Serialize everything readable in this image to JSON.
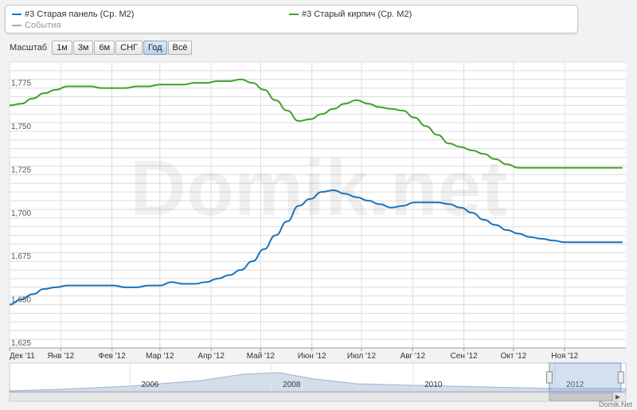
{
  "legend": {
    "items": [
      {
        "label": "#3 Старая панель (Ср. M2)",
        "color": "#1a73bb"
      },
      {
        "label": "#3 Старый кирпич (Ср. M2)",
        "color": "#3fa12a"
      },
      {
        "label": "События",
        "color": "#aaaaaa"
      }
    ]
  },
  "toolbar": {
    "label": "Масштаб",
    "buttons": [
      "1м",
      "3м",
      "6м",
      "СНГ",
      "Год",
      "Всё"
    ],
    "active": "Год"
  },
  "watermark": "Domik.net",
  "credit": "Domik.Net",
  "chart_data": {
    "type": "line",
    "title": "",
    "xlabel": "",
    "ylabel": "",
    "x": [
      "2011-12-01",
      "2011-12-08",
      "2011-12-15",
      "2011-12-22",
      "2011-12-29",
      "2012-01-05",
      "2012-01-12",
      "2012-01-19",
      "2012-01-26",
      "2012-02-02",
      "2012-02-09",
      "2012-02-16",
      "2012-02-23",
      "2012-03-01",
      "2012-03-08",
      "2012-03-15",
      "2012-03-22",
      "2012-03-29",
      "2012-04-05",
      "2012-04-12",
      "2012-04-19",
      "2012-04-26",
      "2012-05-03",
      "2012-05-10",
      "2012-05-17",
      "2012-05-24",
      "2012-05-31",
      "2012-06-07",
      "2012-06-14",
      "2012-06-21",
      "2012-06-28",
      "2012-07-05",
      "2012-07-12",
      "2012-07-19",
      "2012-07-26",
      "2012-08-02",
      "2012-08-09",
      "2012-08-16",
      "2012-08-23",
      "2012-08-30",
      "2012-09-06",
      "2012-09-13",
      "2012-09-20",
      "2012-09-27",
      "2012-10-04",
      "2012-10-11",
      "2012-10-18",
      "2012-10-25",
      "2012-11-01",
      "2012-11-08",
      "2012-11-15",
      "2012-11-22",
      "2012-11-29",
      "2012-12-06"
    ],
    "series": [
      {
        "name": "#3 Старая панель (Ср. M2)",
        "color": "#1a73bb",
        "values": [
          1650,
          1653,
          1656,
          1659,
          1660,
          1661,
          1661,
          1661,
          1661,
          1661,
          1660,
          1660,
          1661,
          1661,
          1663,
          1662,
          1662,
          1663,
          1665,
          1667,
          1670,
          1675,
          1682,
          1690,
          1698,
          1707,
          1711,
          1715,
          1716,
          1714,
          1712,
          1710,
          1708,
          1706,
          1707,
          1709,
          1709,
          1709,
          1708,
          1706,
          1703,
          1699,
          1696,
          1693,
          1691,
          1689,
          1688,
          1687,
          1686,
          1686,
          1686,
          1686,
          1686,
          1686
        ]
      },
      {
        "name": "#3 Старый кирпич (Ср. M2)",
        "color": "#3fa12a",
        "values": [
          1765,
          1766,
          1769,
          1772,
          1774,
          1776,
          1776,
          1776,
          1775,
          1775,
          1775,
          1776,
          1776,
          1777,
          1777,
          1777,
          1778,
          1778,
          1779,
          1779,
          1780,
          1778,
          1774,
          1768,
          1762,
          1756,
          1757,
          1760,
          1763,
          1766,
          1768,
          1766,
          1764,
          1763,
          1762,
          1758,
          1753,
          1748,
          1743,
          1741,
          1739,
          1737,
          1734,
          1731,
          1729,
          1729,
          1729,
          1729,
          1729,
          1729,
          1729,
          1729,
          1729,
          1729
        ]
      }
    ],
    "ylim": [
      1625,
      1790
    ],
    "y_ticks": [
      "1,625",
      "1,650",
      "1,675",
      "1,700",
      "1,725",
      "1,750",
      "1,775"
    ],
    "x_ticks": [
      {
        "date": "2011-12-01",
        "label": "Дек '11"
      },
      {
        "date": "2012-01-01",
        "label": "Янв '12"
      },
      {
        "date": "2012-02-01",
        "label": "Фев '12"
      },
      {
        "date": "2012-03-01",
        "label": "Мар '12"
      },
      {
        "date": "2012-04-01",
        "label": "Апр '12"
      },
      {
        "date": "2012-05-01",
        "label": "Май '12"
      },
      {
        "date": "2012-06-01",
        "label": "Июн '12"
      },
      {
        "date": "2012-07-01",
        "label": "Июл '12"
      },
      {
        "date": "2012-08-01",
        "label": "Авг '12"
      },
      {
        "date": "2012-09-01",
        "label": "Сен '12"
      },
      {
        "date": "2012-10-01",
        "label": "Окт '12"
      },
      {
        "date": "2012-11-01",
        "label": "Ноя '12"
      }
    ],
    "xlim": [
      "2011-12-01",
      "2012-12-08"
    ],
    "grid": true
  },
  "navigator": {
    "year_labels": [
      {
        "year": 2006,
        "label": "2006"
      },
      {
        "year": 2008,
        "label": "2008"
      },
      {
        "year": 2010,
        "label": "2010"
      },
      {
        "year": 2012,
        "label": "2012"
      }
    ],
    "range": [
      2004.3,
      2013.0
    ],
    "selection": [
      2011.92,
      2012.93
    ],
    "profile": [
      [
        2004.3,
        1
      ],
      [
        2005,
        3
      ],
      [
        2006,
        7
      ],
      [
        2007,
        14
      ],
      [
        2007.6,
        22
      ],
      [
        2008.1,
        24
      ],
      [
        2008.6,
        16
      ],
      [
        2009.2,
        10
      ],
      [
        2010,
        8
      ],
      [
        2011,
        6
      ],
      [
        2012,
        4
      ],
      [
        2013,
        4
      ]
    ]
  }
}
